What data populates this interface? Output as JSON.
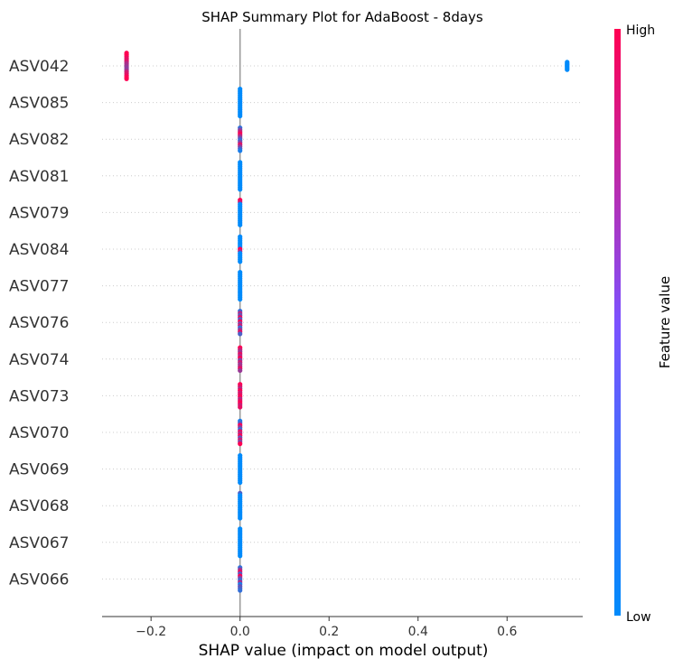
{
  "chart_data": {
    "type": "scatter",
    "title": "SHAP Summary Plot for AdaBoost - 8days",
    "xlabel": "SHAP value (impact on model output)",
    "xlim": [
      -0.31,
      0.77
    ],
    "xticks": [
      -0.2,
      0.0,
      0.2,
      0.4,
      0.6
    ],
    "xtick_labels": [
      "−0.2",
      "0.0",
      "0.2",
      "0.4",
      "0.6"
    ],
    "features": [
      "ASV042",
      "ASV085",
      "ASV082",
      "ASV081",
      "ASV079",
      "ASV084",
      "ASV077",
      "ASV076",
      "ASV074",
      "ASV073",
      "ASV070",
      "ASV069",
      "ASV068",
      "ASV067",
      "ASV066"
    ],
    "points": [
      {
        "x": -0.255,
        "v": [
          1,
          1,
          1,
          0.9,
          0.9,
          0.85,
          0.7,
          0.65,
          0.6,
          0.55,
          0.6,
          0.8,
          0.85,
          0.9,
          1,
          1
        ]
      },
      {
        "x": 0.735,
        "v": [
          0,
          0,
          0,
          0,
          0,
          0,
          0
        ]
      },
      {
        "x": 0.0,
        "v": [
          0,
          0,
          0,
          0,
          0,
          0,
          0,
          0,
          0,
          0,
          0,
          0,
          0,
          0
        ]
      },
      {
        "x": 0.0,
        "v": [
          0.2,
          0.5,
          0.8,
          1,
          0.7,
          0.4,
          0.2,
          0.5,
          0.9,
          0.6,
          0.3,
          0.1
        ]
      },
      {
        "x": 0.0,
        "v": [
          0,
          0,
          0,
          0,
          0,
          0,
          0,
          0,
          0,
          0,
          0,
          0,
          0,
          0
        ]
      },
      {
        "x": 0.0,
        "v": [
          1,
          0.8,
          0,
          0,
          0,
          0,
          0,
          0,
          0,
          0,
          0,
          0,
          0
        ]
      },
      {
        "x": 0.0,
        "v": [
          0,
          0,
          0,
          0,
          0,
          0,
          1,
          0.7,
          0,
          0,
          0,
          0,
          0
        ]
      },
      {
        "x": 0.0,
        "v": [
          0,
          0,
          0,
          0,
          0,
          0,
          0,
          0,
          0,
          0,
          0,
          0,
          0,
          0
        ]
      },
      {
        "x": 0.0,
        "v": [
          0.2,
          0.7,
          0.4,
          0.9,
          0.3,
          1,
          0.5,
          0.8,
          0.2,
          0.6,
          0.9,
          0.3
        ]
      },
      {
        "x": 0.0,
        "v": [
          1,
          0.8,
          0.6,
          0.9,
          0.7,
          1,
          0.5,
          0.8,
          0.6,
          0.7,
          0.9,
          0.6
        ]
      },
      {
        "x": 0.0,
        "v": [
          1,
          0.9,
          0.7,
          1,
          0.8,
          0.9,
          1,
          0.7,
          0.9,
          1,
          0.8,
          0.9
        ]
      },
      {
        "x": 0.0,
        "v": [
          0.1,
          0.3,
          1,
          0.6,
          0.2,
          0.9,
          0.7,
          1,
          0.4,
          0.8,
          0.5,
          1
        ]
      },
      {
        "x": 0.0,
        "v": [
          0,
          0,
          0,
          0,
          0,
          0,
          0,
          0,
          0,
          0,
          0,
          0,
          0,
          0
        ]
      },
      {
        "x": 0.0,
        "v": [
          0.3,
          0,
          0,
          0,
          0,
          0,
          0,
          0,
          0,
          0,
          0,
          0,
          0
        ]
      },
      {
        "x": 0.0,
        "v": [
          0,
          0,
          0,
          0,
          0,
          0,
          0,
          0,
          0,
          0,
          0,
          0,
          0,
          0
        ]
      },
      {
        "x": 0.0,
        "v": [
          0.2,
          0.6,
          0.9,
          0.3,
          1,
          0.5,
          0.2,
          0.7,
          0.1,
          0.4,
          0.3,
          0.2
        ]
      }
    ],
    "colorbar": {
      "label": "Feature value",
      "high": "High",
      "low": "Low",
      "low_color": "#008bfb",
      "high_color": "#ff0052"
    },
    "grid": false,
    "legend": "colorbar-right"
  }
}
